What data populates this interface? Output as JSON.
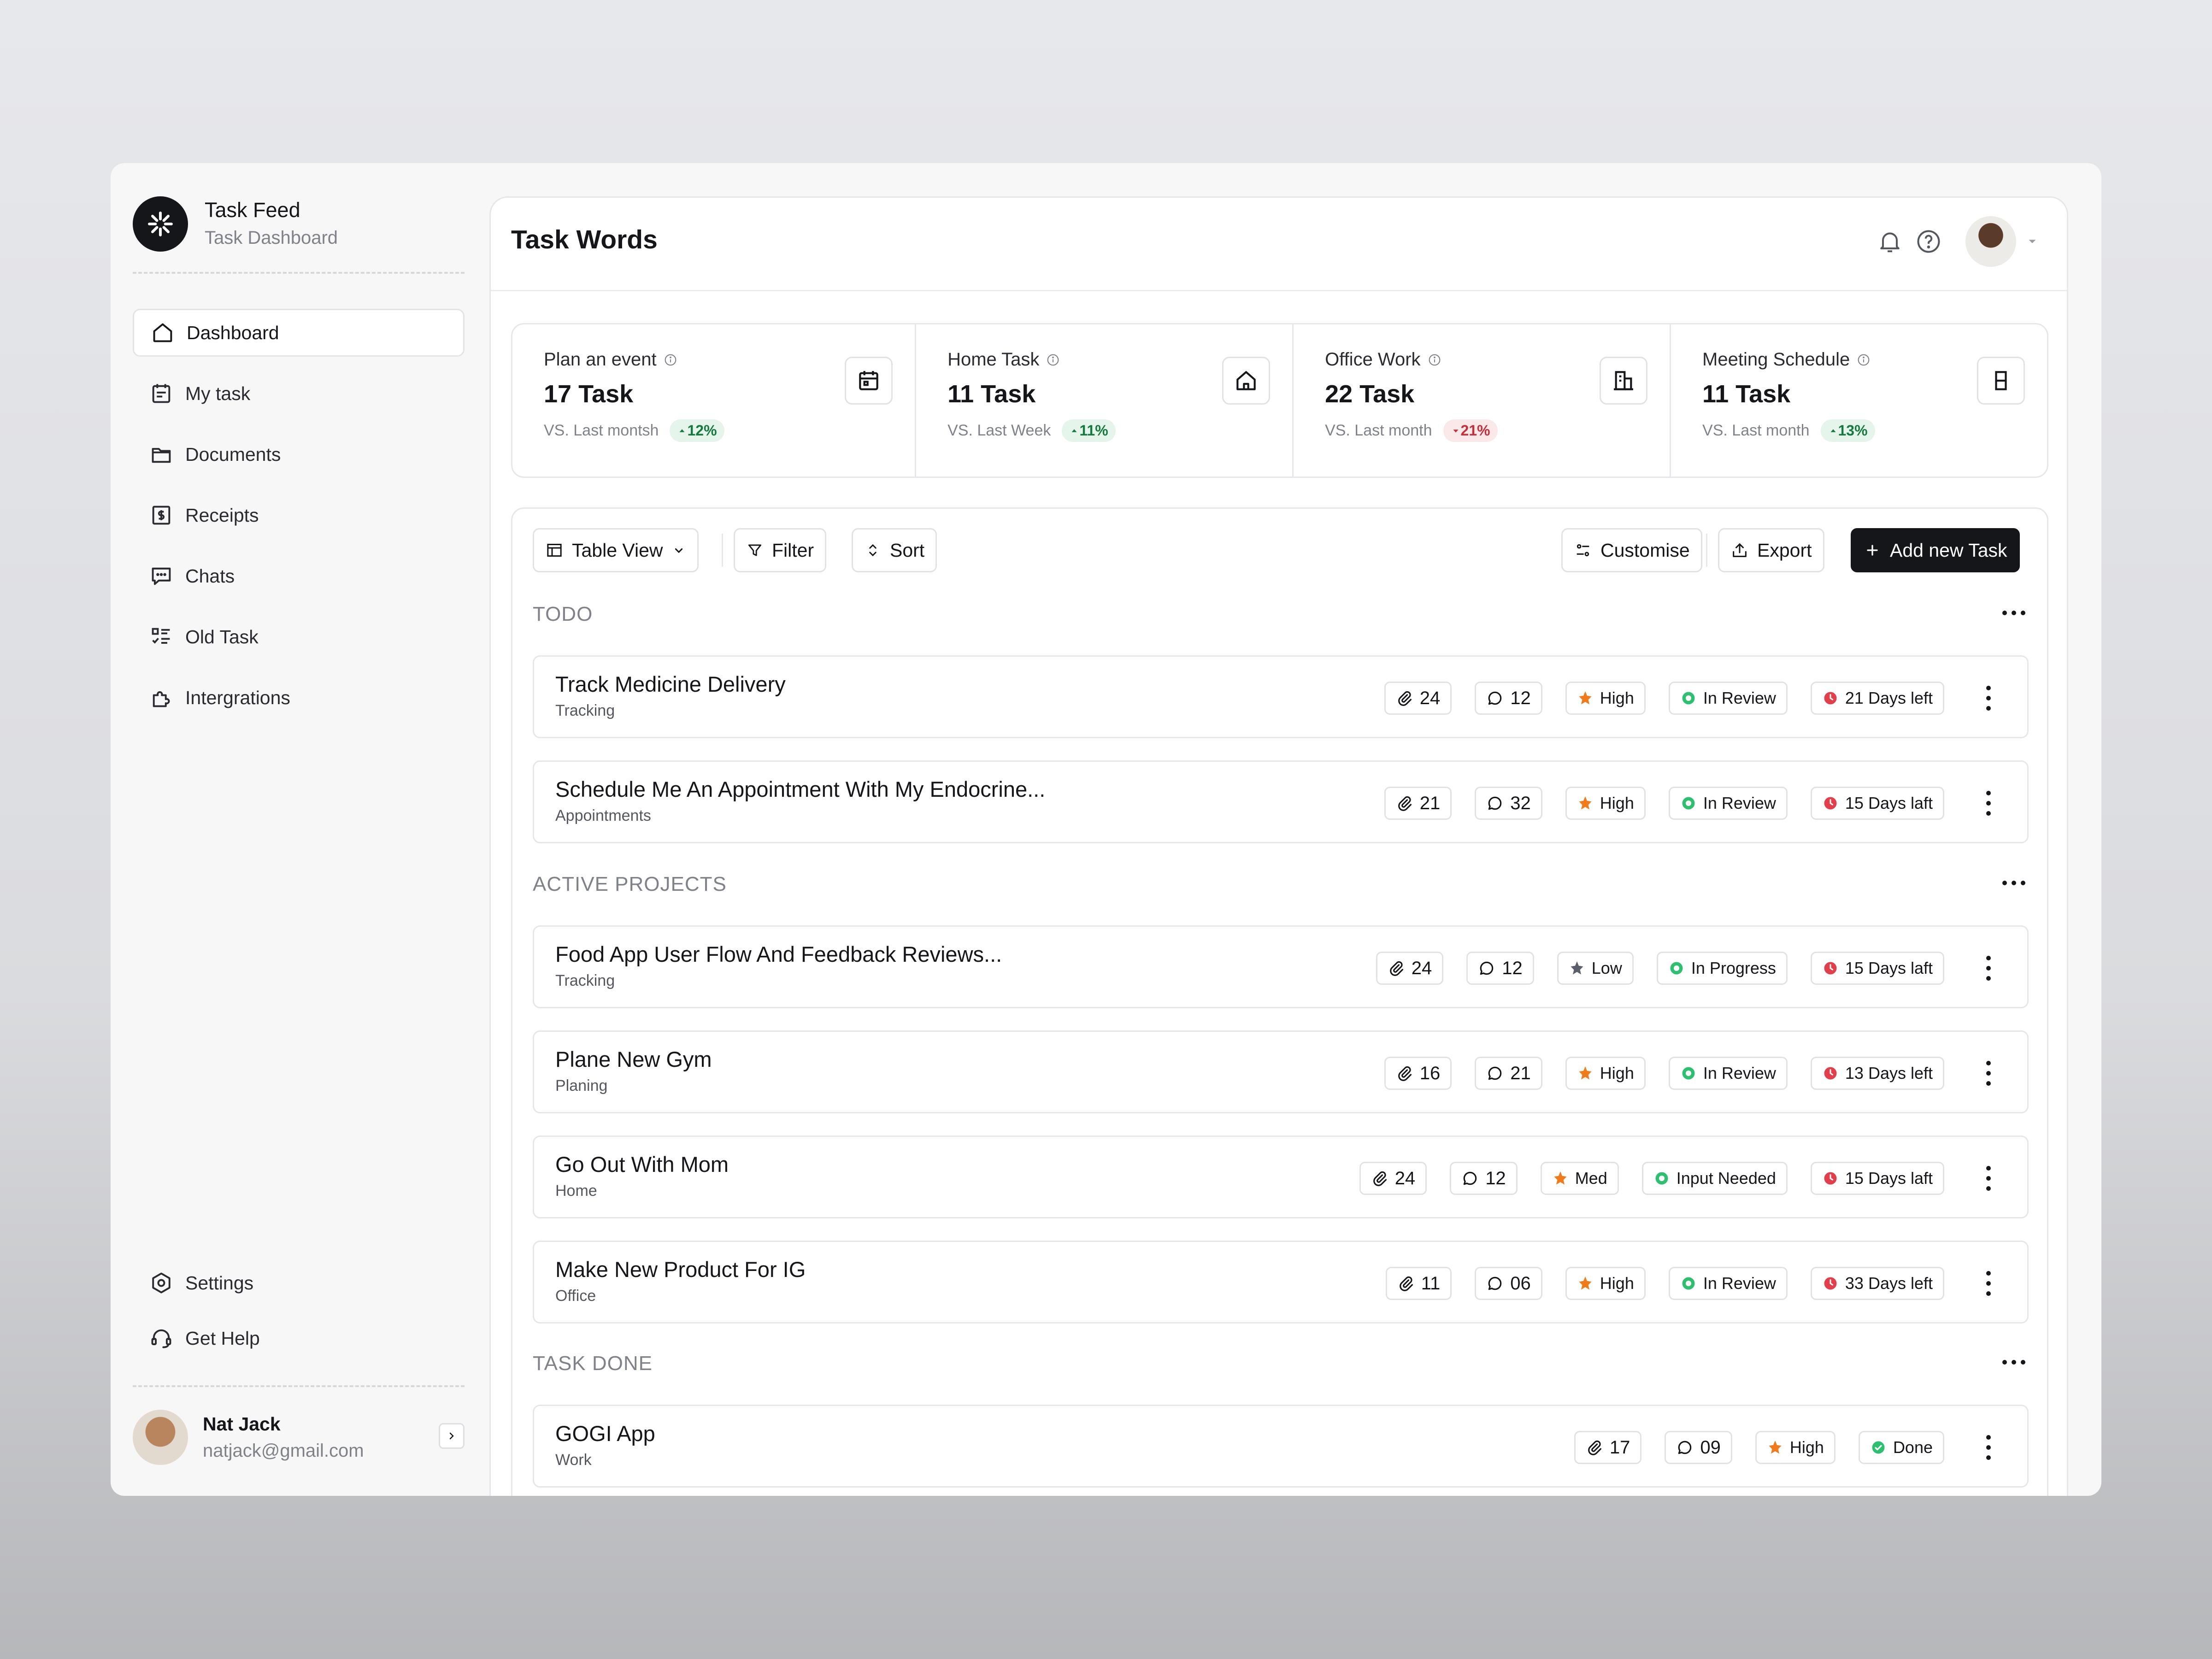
{
  "brand": {
    "name": "Task Feed",
    "subtitle": "Task Dashboard"
  },
  "sidebar": {
    "items": [
      {
        "label": "Dashboard",
        "icon": "home-icon",
        "active": true
      },
      {
        "label": "My task",
        "icon": "calendar-icon"
      },
      {
        "label": "Documents",
        "icon": "folder-icon"
      },
      {
        "label": "Receipts",
        "icon": "receipt-icon"
      },
      {
        "label": "Chats",
        "icon": "chat-icon"
      },
      {
        "label": "Old Task",
        "icon": "checklist-icon"
      },
      {
        "label": "Intergrations",
        "icon": "puzzle-icon"
      }
    ],
    "bottom": [
      {
        "label": "Settings",
        "icon": "settings-icon"
      },
      {
        "label": "Get Help",
        "icon": "headset-icon"
      }
    ],
    "user": {
      "name": "Nat Jack",
      "email": "natjack@gmail.com"
    }
  },
  "header": {
    "title": "Task Words"
  },
  "stats": [
    {
      "title": "Plan an event",
      "value": "17 Task",
      "compare": "VS. Last montsh",
      "delta": "12%",
      "trend": "up",
      "icon": "calendar-icon"
    },
    {
      "title": "Home Task",
      "value": "11 Task",
      "compare": "VS. Last Week",
      "delta": "11%",
      "trend": "up",
      "icon": "home-icon"
    },
    {
      "title": "Office Work",
      "value": "22 Task",
      "compare": "VS. Last month",
      "delta": "21%",
      "trend": "down",
      "icon": "building-icon"
    },
    {
      "title": "Meeting Schedule",
      "value": "11 Task",
      "compare": "VS. Last month",
      "delta": "13%",
      "trend": "up",
      "icon": "door-icon"
    }
  ],
  "toolbar": {
    "view": "Table View",
    "filter": "Filter",
    "sort": "Sort",
    "customise": "Customise",
    "export": "Export",
    "add": "Add new Task"
  },
  "sections": {
    "todo": "TODO",
    "active": "ACTIVE PROJECTS",
    "done": "TASK DONE"
  },
  "tasks": [
    {
      "title": "Track Medicine Delivery",
      "sub": "Tracking",
      "attach": "24",
      "comments": "12",
      "priority": "High",
      "status": "In Review",
      "due": "21 Days left"
    },
    {
      "title": "Schedule Me An Appointment With My Endocrine...",
      "sub": "Appointments",
      "attach": "21",
      "comments": "32",
      "priority": "High",
      "status": "In Review",
      "due": "15 Days laft"
    },
    {
      "title": "Food App User Flow And Feedback Reviews...",
      "sub": "Tracking",
      "attach": "24",
      "comments": "12",
      "priority": "Low",
      "status": "In Progress",
      "due": "15 Days laft"
    },
    {
      "title": "Plane New Gym",
      "sub": "Planing",
      "attach": "16",
      "comments": "21",
      "priority": "High",
      "status": "In Review",
      "due": "13 Days left"
    },
    {
      "title": "Go Out With Mom",
      "sub": "Home",
      "attach": "24",
      "comments": "12",
      "priority": "Med",
      "status": "Input Needed",
      "due": "15 Days laft"
    },
    {
      "title": "Make New Product For IG",
      "sub": "Office",
      "attach": "11",
      "comments": "06",
      "priority": "High",
      "status": "In Review",
      "due": "33 Days left"
    },
    {
      "title": "GOGI App",
      "sub": "Work",
      "attach": "17",
      "comments": "09",
      "priority": "High",
      "status": "Done"
    }
  ],
  "colors": {
    "accent_dark": "#15161a",
    "muted": "#80828a",
    "status_green": "#2fbf71",
    "due_red": "#e0404b",
    "priority_orange": "#f07b1d",
    "priority_low": "#5c5f6b"
  }
}
